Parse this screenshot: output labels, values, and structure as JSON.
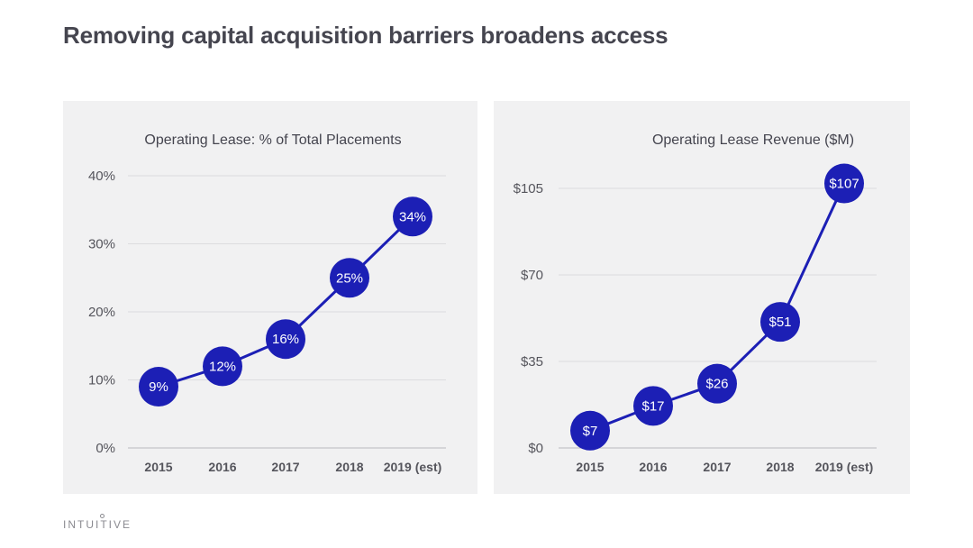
{
  "page": {
    "title": "Removing capital acquisition barriers broadens access",
    "logo": "INTUITIVE"
  },
  "colors": {
    "accent": "#1c1fb5",
    "panel_bg": "#f1f1f2",
    "gridline": "#dcdcdf",
    "axis_line": "#b9b9bd",
    "tick_text": "#55555c",
    "title_text": "#45454f",
    "point_label": "#ffffff"
  },
  "chart_data": [
    {
      "type": "line",
      "title": "Operating Lease: % of Total Placements",
      "xlabel": "",
      "ylabel": "",
      "categories": [
        "2015",
        "2016",
        "2017",
        "2018",
        "2019 (est)"
      ],
      "values": [
        9,
        12,
        16,
        25,
        34
      ],
      "data_labels": [
        "9%",
        "12%",
        "16%",
        "25%",
        "34%"
      ],
      "ylim": [
        0,
        40
      ],
      "yticks": [
        0,
        10,
        20,
        30,
        40
      ],
      "ytick_labels": [
        "0%",
        "10%",
        "20%",
        "30%",
        "40%"
      ],
      "grid": true,
      "legend": "none"
    },
    {
      "type": "line",
      "title": "Operating Lease Revenue ($M)",
      "xlabel": "",
      "ylabel": "",
      "categories": [
        "2015",
        "2016",
        "2017",
        "2018",
        "2019 (est)"
      ],
      "values": [
        7,
        17,
        26,
        51,
        107
      ],
      "data_labels": [
        "$7",
        "$17",
        "$26",
        "$51",
        "$107"
      ],
      "ylim": [
        0,
        105
      ],
      "yticks": [
        0,
        35,
        70,
        105
      ],
      "ytick_labels": [
        "$0",
        "$35",
        "$70",
        "$105"
      ],
      "grid": true,
      "legend": "none"
    }
  ]
}
